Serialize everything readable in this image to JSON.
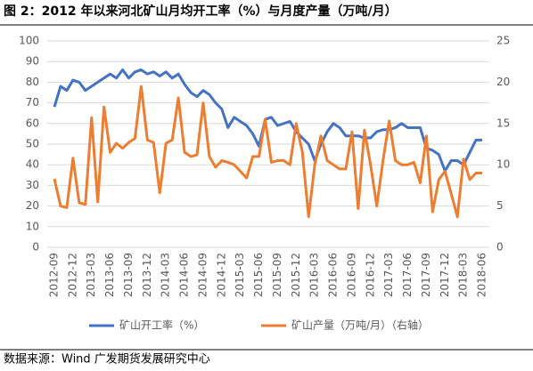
{
  "chart_data": {
    "type": "line",
    "title": "图 2：2012 年以来河北矿山月均开工率（%）与月度产量（万吨/月）",
    "source": "数据来源：Wind 广发期货发展研究中心",
    "categories": [
      "2012-09",
      null,
      null,
      "2012-12",
      null,
      null,
      "2013-03",
      null,
      null,
      "2013-06",
      null,
      null,
      "2013-09",
      null,
      null,
      "2013-12",
      null,
      null,
      "2014-03",
      null,
      null,
      "2014-06",
      null,
      null,
      "2014-09",
      null,
      null,
      "2014-12",
      null,
      null,
      "2015-03",
      null,
      null,
      "2015-06",
      null,
      null,
      "2015-09",
      null,
      null,
      "2015-12",
      null,
      null,
      "2016-03",
      null,
      null,
      "2016-06",
      null,
      null,
      "2016-09",
      null,
      null,
      "2016-12",
      null,
      null,
      "2017-03",
      null,
      null,
      "2017-06",
      null,
      null,
      "2017-09",
      null,
      null,
      "2017-12",
      null,
      null,
      "2018-03",
      null,
      null,
      "2018-06"
    ],
    "series": [
      {
        "name": "矿山开工率（%）",
        "color": "#4472c4",
        "values": [
          68,
          78,
          76,
          81,
          80,
          76,
          78,
          80,
          82,
          84,
          82,
          86,
          82,
          85,
          86,
          84,
          85,
          83,
          85,
          82,
          84,
          79,
          75,
          73,
          76,
          74,
          70,
          67,
          58,
          63,
          61,
          59,
          55,
          49,
          62,
          63,
          59,
          60,
          61,
          56,
          53,
          50,
          42,
          50,
          56,
          60,
          58,
          54,
          54,
          54,
          53,
          53,
          56,
          57,
          57,
          58,
          60,
          58,
          58,
          58,
          48,
          47,
          45,
          37,
          42,
          42,
          40,
          46,
          52,
          52
        ]
      },
      {
        "name": "矿山产量（万吨/月）（右轴）",
        "color": "#ed7d31",
        "axis": "y2",
        "values": [
          8.3,
          5,
          4.8,
          10.8,
          5.4,
          5.2,
          15.7,
          5.5,
          17,
          11.5,
          12.6,
          12,
          12.7,
          13.2,
          19.5,
          13,
          12.7,
          6.6,
          12.6,
          13,
          18.1,
          11.5,
          11,
          11.2,
          17.5,
          11,
          9.7,
          10.5,
          10.3,
          10,
          9.2,
          8.4,
          11,
          11,
          15.5,
          10.3,
          10.5,
          10.5,
          10,
          15,
          11.5,
          3.7,
          10,
          13.5,
          10.5,
          10,
          9.5,
          9.5,
          14,
          4.7,
          14.2,
          10,
          5,
          10.5,
          15.3,
          10.5,
          10,
          10,
          10.3,
          7.8,
          13.5,
          4.3,
          8.2,
          9.2,
          6.5,
          3.7,
          10.7,
          8.2,
          9,
          9
        ]
      }
    ],
    "ylim": [
      0,
      100
    ],
    "yticks": [
      0,
      10,
      20,
      30,
      40,
      50,
      60,
      70,
      80,
      90,
      100
    ],
    "y2lim": [
      0,
      25
    ],
    "y2ticks": [
      0,
      5,
      10,
      15,
      20,
      25
    ],
    "grid": true,
    "legend": "bottom"
  }
}
